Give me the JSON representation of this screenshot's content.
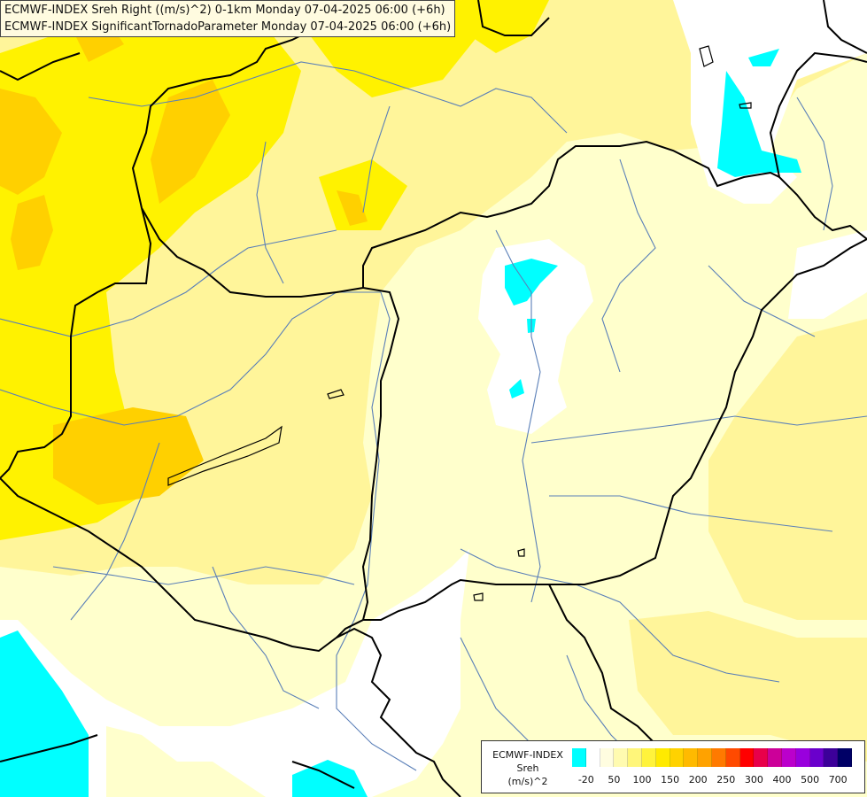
{
  "header": {
    "line1": "ECMWF-INDEX Sreh Right ((m/s)^2) 0-1km Monday 07-04-2025 06:00 (+6h)",
    "line2": "ECMWF-INDEX SignificantTornadoParameter Monday 07-04-2025 06:00 (+6h)"
  },
  "legend": {
    "line1": "ECMWF-INDEX",
    "line2": "Sreh",
    "line3": "(m/s)^2",
    "colors": [
      "#00ffff",
      "#ffffff",
      "#fffde0",
      "#fffbb0",
      "#fff67a",
      "#fff33c",
      "#ffea00",
      "#ffd200",
      "#ffba00",
      "#ffa200",
      "#ff7a00",
      "#ff4a00",
      "#ff0000",
      "#e8004a",
      "#cc0099",
      "#bb00cc",
      "#9900dd",
      "#6a00cc",
      "#3c0099",
      "#000066"
    ],
    "ticks": [
      "-20",
      "50",
      "100",
      "150",
      "200",
      "250",
      "300",
      "400",
      "500",
      "700"
    ]
  },
  "palette": {
    "background": "#ffffff",
    "shade_light": "#ffffcc",
    "shade_mid": "#fff59a",
    "shade_yellow": "#fff200",
    "shade_orange": "#ffd000",
    "negative": "#00ffff",
    "border": "#000000",
    "river": "#5a7fb8"
  }
}
